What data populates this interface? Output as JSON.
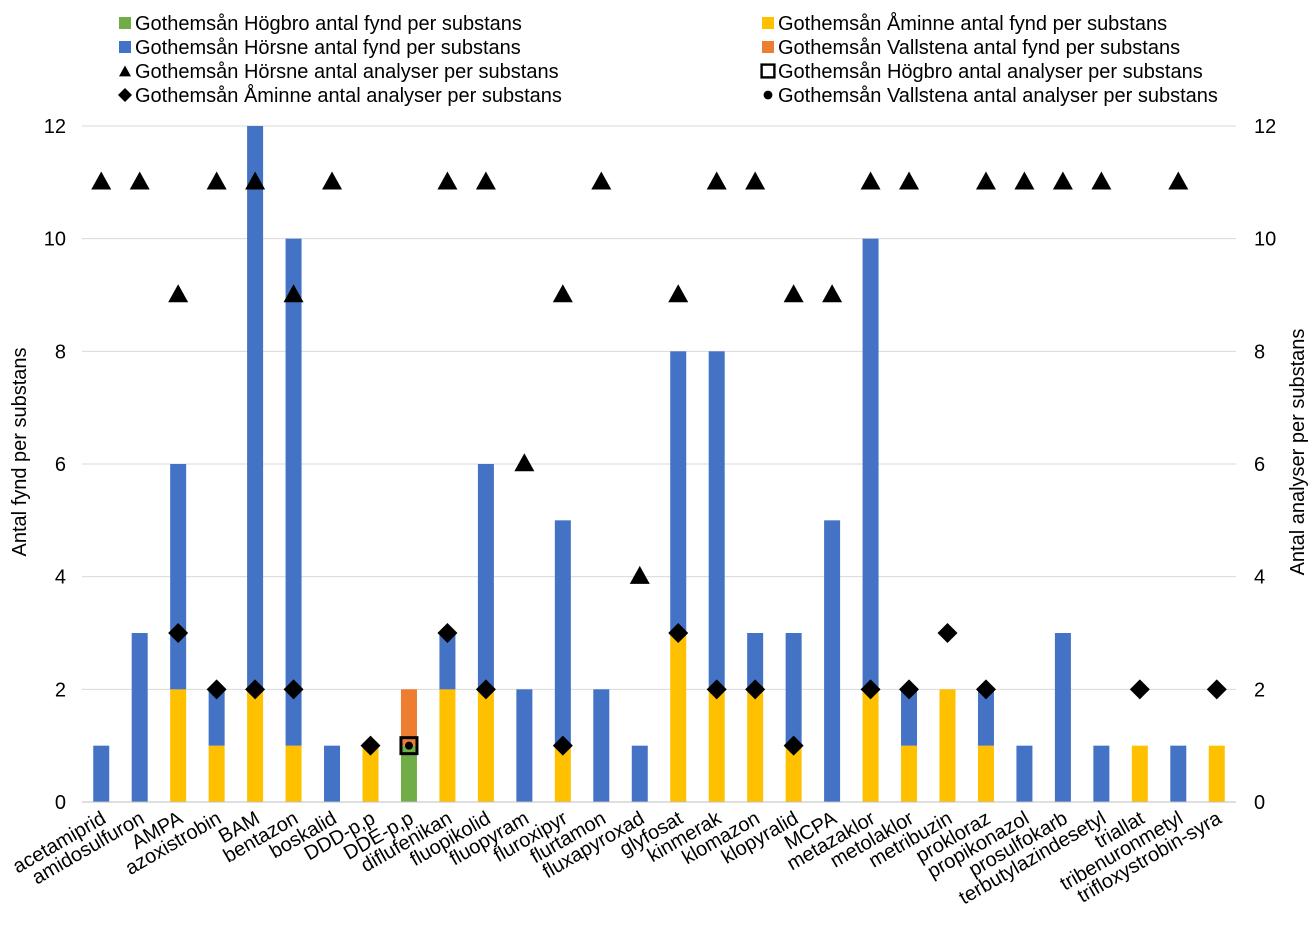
{
  "chart_data": {
    "type": "bar",
    "categories": [
      "acetamiprid",
      "amidosulfuron",
      "AMPA",
      "azoxistrobin",
      "BAM",
      "bentazon",
      "boskalid",
      "DDD-p,p",
      "DDE-p,p",
      "diflufenikan",
      "fluopikolid",
      "fluopyram",
      "fluroxipyr",
      "flurtamon",
      "fluxapyroxad",
      "glyfosat",
      "kinmerak",
      "klomazon",
      "klopyralid",
      "MCPA",
      "metazaklor",
      "metolaklor",
      "metribuzin",
      "prokloraz",
      "propikonazol",
      "prosulfokarb",
      "terbutylazindesetyl",
      "triallat",
      "tribenuronmetyl",
      "trifloxystrobin-syra"
    ],
    "bar_series": [
      {
        "name": "Gothemsån Högbro antal fynd per substans",
        "color": "#70ad47",
        "values": [
          0,
          0,
          0,
          0,
          0,
          0,
          0,
          0,
          1,
          0,
          0,
          0,
          0,
          0,
          0,
          0,
          0,
          0,
          0,
          0,
          0,
          0,
          0,
          0,
          0,
          0,
          0,
          0,
          0,
          0
        ]
      },
      {
        "name": "Gothemsån Åminne antal fynd per substans",
        "color": "#ffc000",
        "values": [
          0,
          0,
          2,
          1,
          2,
          1,
          0,
          1,
          0,
          2,
          2,
          0,
          1,
          0,
          0,
          3,
          2,
          2,
          1,
          0,
          2,
          1,
          2,
          1,
          0,
          0,
          0,
          1,
          0,
          1
        ]
      },
      {
        "name": "Gothemsån Hörsne antal fynd per substans",
        "color": "#4472c4",
        "values": [
          1,
          3,
          4,
          1,
          10,
          9,
          1,
          0,
          0,
          1,
          4,
          2,
          4,
          2,
          1,
          5,
          6,
          1,
          2,
          5,
          8,
          1,
          0,
          1,
          1,
          3,
          1,
          0,
          1,
          0
        ]
      },
      {
        "name": "Gothemsån Vallstena antal fynd per substans",
        "color": "#ed7d31",
        "values": [
          0,
          0,
          0,
          0,
          0,
          0,
          0,
          0,
          1,
          0,
          0,
          0,
          0,
          0,
          0,
          0,
          0,
          0,
          0,
          0,
          0,
          0,
          0,
          0,
          0,
          0,
          0,
          0,
          0,
          0
        ]
      }
    ],
    "marker_series": [
      {
        "name": "Gothemsån Hörsne antal analyser per substans",
        "marker": "triangle",
        "values": [
          11,
          11,
          9,
          11,
          11,
          9,
          11,
          null,
          null,
          11,
          11,
          6,
          9,
          11,
          4,
          9,
          11,
          11,
          9,
          9,
          11,
          11,
          null,
          11,
          11,
          11,
          11,
          null,
          11,
          null
        ]
      },
      {
        "name": "Gothemsån Högbro antal analyser per substans",
        "marker": "square-open",
        "values": [
          null,
          null,
          null,
          null,
          null,
          null,
          null,
          null,
          1,
          null,
          null,
          null,
          null,
          null,
          null,
          null,
          null,
          null,
          null,
          null,
          null,
          null,
          null,
          null,
          null,
          null,
          null,
          null,
          null,
          null
        ]
      },
      {
        "name": "Gothemsån Åminne antal analyser per substans",
        "marker": "diamond",
        "values": [
          null,
          null,
          3,
          2,
          2,
          2,
          null,
          1,
          null,
          3,
          2,
          null,
          1,
          null,
          null,
          3,
          2,
          2,
          1,
          null,
          2,
          2,
          3,
          2,
          null,
          null,
          null,
          2,
          null,
          2
        ]
      },
      {
        "name": "Gothemsån Vallstena antal analyser per substans",
        "marker": "circle",
        "values": [
          null,
          null,
          null,
          null,
          null,
          null,
          null,
          null,
          1,
          null,
          null,
          null,
          null,
          null,
          null,
          null,
          null,
          null,
          null,
          null,
          null,
          null,
          null,
          null,
          null,
          null,
          null,
          null,
          null,
          null
        ]
      }
    ],
    "legend_left": [
      {
        "label": "Gothemsån Högbro antal fynd per substans",
        "symbol": "square",
        "color": "#70ad47"
      },
      {
        "label": "Gothemsån Hörsne antal fynd per substans",
        "symbol": "square",
        "color": "#4472c4"
      },
      {
        "label": "Gothemsån Hörsne antal analyser per substans",
        "symbol": "triangle",
        "color": "#000000"
      },
      {
        "label": "Gothemsån Åminne antal analyser per substans",
        "symbol": "diamond",
        "color": "#000000"
      }
    ],
    "legend_right": [
      {
        "label": "Gothemsån Åminne antal fynd per substans",
        "symbol": "square",
        "color": "#ffc000"
      },
      {
        "label": "Gothemsån Vallstena antal fynd per substans",
        "symbol": "square",
        "color": "#ed7d31"
      },
      {
        "label": "Gothemsån Högbro antal analyser per substans",
        "symbol": "square-open",
        "color": "#000000"
      },
      {
        "label": "Gothemsån Vallstena antal analyser per substans",
        "symbol": "circle",
        "color": "#000000"
      }
    ],
    "ylabel_left": "Antal fynd per substans",
    "ylabel_right": "Antal analyser per substans",
    "ylim": [
      0,
      12
    ],
    "yticks": [
      0,
      2,
      4,
      6,
      8,
      10,
      12
    ],
    "grid": true,
    "legend_position": "top"
  }
}
